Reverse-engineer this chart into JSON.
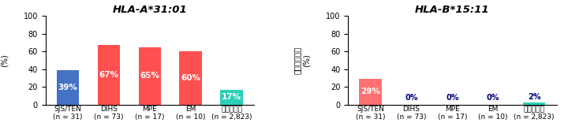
{
  "chart1": {
    "title": "HLA-A*31:01",
    "categories": [
      "SJS/TEN\n(n = 31)",
      "DIHS\n(n = 73)",
      "MPE\n(n = 17)",
      "EM\n(n = 10)",
      "日本人集団\n(n = 2,823)"
    ],
    "values": [
      39,
      67,
      65,
      60,
      17
    ],
    "colors": [
      "#4472C4",
      "#FF5050",
      "#FF5050",
      "#FF5050",
      "#2ECFB8"
    ],
    "label_colors": [
      "white",
      "white",
      "white",
      "white",
      "white"
    ],
    "labels": [
      "39%",
      "67%",
      "65%",
      "60%",
      "17%"
    ]
  },
  "chart2": {
    "title": "HLA-B*15:11",
    "categories": [
      "SJS/TEN\n(n = 31)",
      "DIHS\n(n = 73)",
      "MPE\n(n = 17)",
      "EM\n(n = 10)",
      "日本人集団\n(n = 2,823)"
    ],
    "values": [
      29,
      0,
      0,
      0,
      2
    ],
    "colors": [
      "#FF7070",
      "#FFFFFF",
      "#FFFFFF",
      "#FFFFFF",
      "#2ECFB8"
    ],
    "label_colors": [
      "white",
      "#000080",
      "#000080",
      "#000080",
      "#000080"
    ],
    "labels": [
      "29%",
      "0%",
      "0%",
      "0%",
      "2%"
    ]
  },
  "ylim": [
    0,
    100
  ],
  "yticks": [
    0,
    20,
    40,
    60,
    80,
    100
  ],
  "ylabel_lines": [
    "アレル保",
    "有率",
    "(%)"
  ],
  "ylabel_top": "アレル保有率",
  "ylabel_bottom": "(%)",
  "background_color": "#FFFFFF",
  "bar_width": 0.55
}
